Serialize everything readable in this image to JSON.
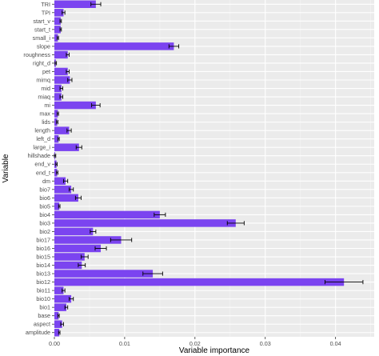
{
  "chart_data": {
    "type": "bar",
    "orientation": "horizontal",
    "xlabel": "Variable importance",
    "ylabel": "Variable",
    "xlim": [
      0,
      0.0455
    ],
    "x_ticks": [
      0.0,
      0.01,
      0.02,
      0.03,
      0.04
    ],
    "x_tick_labels": [
      "0.00",
      "0.01",
      "0.02",
      "0.03",
      "0.04"
    ],
    "grid": true,
    "bar_color": "#7b44f0",
    "background_color": "#ebebeb",
    "error_bars": true,
    "categories": [
      "TRI",
      "TPI",
      "start_v",
      "start_t",
      "small_i",
      "slope",
      "roughness",
      "right_d",
      "pet",
      "mimq",
      "mid",
      "miaq",
      "mi",
      "max",
      "lids",
      "length",
      "left_d",
      "large_i",
      "hillshade",
      "end_v",
      "end_t",
      "dm",
      "bio7",
      "bio6",
      "bio5",
      "bio4",
      "bio3",
      "bio2",
      "bio17",
      "bio16",
      "bio15",
      "bio14",
      "bio13",
      "bio12",
      "bio11",
      "bio10",
      "bio1",
      "base",
      "aspect",
      "amplitude"
    ],
    "values": [
      0.0059,
      0.0013,
      0.0009,
      0.0009,
      0.0005,
      0.017,
      0.0019,
      0.0002,
      0.0019,
      0.0022,
      0.001,
      0.001,
      0.0059,
      0.0005,
      0.0004,
      0.0021,
      0.0006,
      0.0035,
      0.0001,
      0.0003,
      0.0004,
      0.0016,
      0.0024,
      0.0034,
      0.0007,
      0.015,
      0.0258,
      0.0055,
      0.0095,
      0.0066,
      0.0043,
      0.0039,
      0.014,
      0.0412,
      0.0013,
      0.0024,
      0.0017,
      0.0006,
      0.0011,
      0.0007
    ],
    "errors": [
      0.0007,
      0.0002,
      0.0001,
      0.0001,
      0.0001,
      0.0007,
      0.0002,
      0.0001,
      0.0002,
      0.0003,
      0.0002,
      0.0002,
      0.0006,
      0.0001,
      0.0001,
      0.0003,
      0.0001,
      0.0004,
      0.0001,
      0.0001,
      0.0001,
      0.0003,
      0.0003,
      0.0004,
      0.0001,
      0.0008,
      0.0012,
      0.0004,
      0.0015,
      0.0008,
      0.0005,
      0.0005,
      0.0014,
      0.0027,
      0.0002,
      0.0003,
      0.0002,
      0.0001,
      0.0002,
      0.0001
    ]
  }
}
